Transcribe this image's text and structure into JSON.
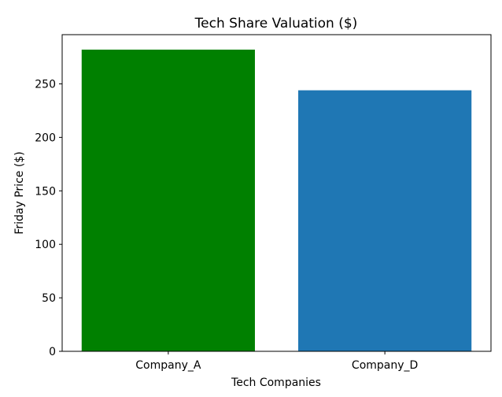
{
  "chart_data": {
    "type": "bar",
    "title": "Tech Share Valuation ($)",
    "xlabel": "Tech Companies",
    "ylabel": "Friday Price ($)",
    "categories": [
      "Company_A",
      "Company_D"
    ],
    "values": [
      282,
      244
    ],
    "colors": [
      "#008000",
      "#1f77b4"
    ],
    "ylim": [
      0,
      296
    ],
    "yticks": [
      0,
      50,
      100,
      150,
      200,
      250
    ],
    "grid": false
  }
}
